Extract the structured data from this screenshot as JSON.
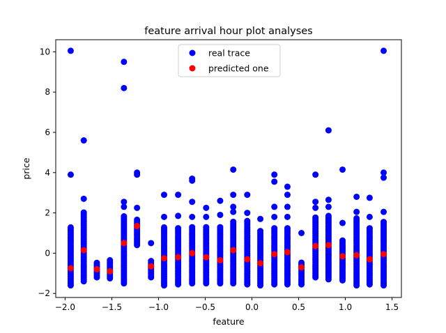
{
  "chart_data": {
    "type": "scatter",
    "title": "feature arrival hour plot analyses",
    "xlabel": "feature",
    "ylabel": "price",
    "xlim": [
      -2.1,
      1.6
    ],
    "ylim": [
      -2.2,
      10.6
    ],
    "xticks": [
      -2.0,
      -1.5,
      -1.0,
      -0.5,
      0.0,
      0.5,
      1.0,
      1.5
    ],
    "xtick_labels": [
      "−2.0",
      "−1.5",
      "−1.0",
      "−0.5",
      "0.0",
      "0.5",
      "1.0",
      "1.5"
    ],
    "yticks": [
      -2,
      0,
      2,
      4,
      6,
      8,
      10
    ],
    "ytick_labels": [
      "−2",
      "0",
      "2",
      "4",
      "6",
      "8",
      "10"
    ],
    "grid": false,
    "legend_position": "top-center",
    "series": [
      {
        "name": "real trace",
        "color": "#0000ff",
        "columns": [
          {
            "x": -1.94,
            "ymin": -1.6,
            "ymax": 1.3,
            "outliers": [
              3.9,
              10.05
            ]
          },
          {
            "x": -1.8,
            "ymin": -1.4,
            "ymax": 2.1,
            "outliers": [
              2.7,
              5.6
            ]
          },
          {
            "x": -1.66,
            "ymin": -1.2,
            "ymax": -0.45,
            "outliers": []
          },
          {
            "x": -1.52,
            "ymin": -1.25,
            "ymax": -0.35,
            "outliers": []
          },
          {
            "x": -1.37,
            "ymin": -1.5,
            "ymax": 1.9,
            "outliers": [
              2.3,
              2.55,
              8.2,
              9.5
            ]
          },
          {
            "x": -1.23,
            "ymin": 0.4,
            "ymax": 1.7,
            "outliers": [
              2.25,
              3.9,
              4.0
            ]
          },
          {
            "x": -1.08,
            "ymin": -1.2,
            "ymax": -0.35,
            "outliers": [
              0.5
            ]
          },
          {
            "x": -0.94,
            "ymin": -1.6,
            "ymax": 1.3,
            "outliers": [
              1.8,
              2.9
            ]
          },
          {
            "x": -0.79,
            "ymin": -1.55,
            "ymax": 1.3,
            "outliers": [
              1.85,
              2.9
            ]
          },
          {
            "x": -0.64,
            "ymin": -1.5,
            "ymax": 1.3,
            "outliers": [
              1.8,
              2.55,
              3.6,
              3.7
            ]
          },
          {
            "x": -0.49,
            "ymin": -1.5,
            "ymax": 1.3,
            "outliers": [
              1.8,
              2.25
            ]
          },
          {
            "x": -0.34,
            "ymin": -1.5,
            "ymax": 1.3,
            "outliers": [
              1.9,
              2.6
            ]
          },
          {
            "x": -0.2,
            "ymin": -1.5,
            "ymax": 1.6,
            "outliers": [
              2.05,
              2.3,
              2.9,
              4.15
            ]
          },
          {
            "x": -0.05,
            "ymin": -1.55,
            "ymax": 1.6,
            "outliers": [
              2.0,
              2.9
            ]
          },
          {
            "x": 0.09,
            "ymin": -1.6,
            "ymax": 1.1,
            "outliers": [
              1.7
            ]
          },
          {
            "x": 0.24,
            "ymin": -1.55,
            "ymax": 1.3,
            "outliers": [
              1.8,
              2.3,
              3.55,
              3.9
            ]
          },
          {
            "x": 0.38,
            "ymin": -1.55,
            "ymax": 1.3,
            "outliers": [
              1.8,
              2.3,
              2.9,
              3.3
            ]
          },
          {
            "x": 0.53,
            "ymin": -1.55,
            "ymax": -0.4,
            "outliers": [
              1.0
            ]
          },
          {
            "x": 0.68,
            "ymin": -1.2,
            "ymax": 1.8,
            "outliers": [
              2.25,
              2.55,
              3.9
            ]
          },
          {
            "x": 0.82,
            "ymin": -1.3,
            "ymax": 1.9,
            "outliers": [
              2.3,
              2.65,
              6.1
            ]
          },
          {
            "x": 0.97,
            "ymin": -1.35,
            "ymax": 0.7,
            "outliers": [
              1.5,
              4.15
            ]
          },
          {
            "x": 1.12,
            "ymin": -1.6,
            "ymax": 1.8,
            "outliers": [
              2.05,
              2.8
            ]
          },
          {
            "x": 1.26,
            "ymin": -1.55,
            "ymax": 1.3,
            "outliers": [
              1.8,
              2.75
            ]
          },
          {
            "x": 1.41,
            "ymin": -1.6,
            "ymax": 1.6,
            "outliers": [
              2.05,
              3.75,
              4.0,
              10.05
            ]
          }
        ]
      },
      {
        "name": "predicted one",
        "color": "#ff0000",
        "points": [
          {
            "x": -1.94,
            "y": -0.75
          },
          {
            "x": -1.8,
            "y": 0.15
          },
          {
            "x": -1.66,
            "y": -0.8
          },
          {
            "x": -1.52,
            "y": -0.9
          },
          {
            "x": -1.37,
            "y": 0.5
          },
          {
            "x": -1.23,
            "y": 1.35
          },
          {
            "x": -1.08,
            "y": -0.65
          },
          {
            "x": -0.94,
            "y": -0.25
          },
          {
            "x": -0.79,
            "y": -0.2
          },
          {
            "x": -0.64,
            "y": 0.0
          },
          {
            "x": -0.49,
            "y": -0.2
          },
          {
            "x": -0.34,
            "y": -0.35
          },
          {
            "x": -0.2,
            "y": 0.15
          },
          {
            "x": -0.05,
            "y": -0.3
          },
          {
            "x": 0.09,
            "y": -0.5
          },
          {
            "x": 0.24,
            "y": -0.05
          },
          {
            "x": 0.38,
            "y": 0.05
          },
          {
            "x": 0.53,
            "y": -0.7
          },
          {
            "x": 0.68,
            "y": 0.35
          },
          {
            "x": 0.82,
            "y": 0.4
          },
          {
            "x": 0.97,
            "y": -0.15
          },
          {
            "x": 1.12,
            "y": -0.1
          },
          {
            "x": 1.26,
            "y": -0.3
          },
          {
            "x": 1.41,
            "y": -0.05
          }
        ]
      }
    ]
  }
}
